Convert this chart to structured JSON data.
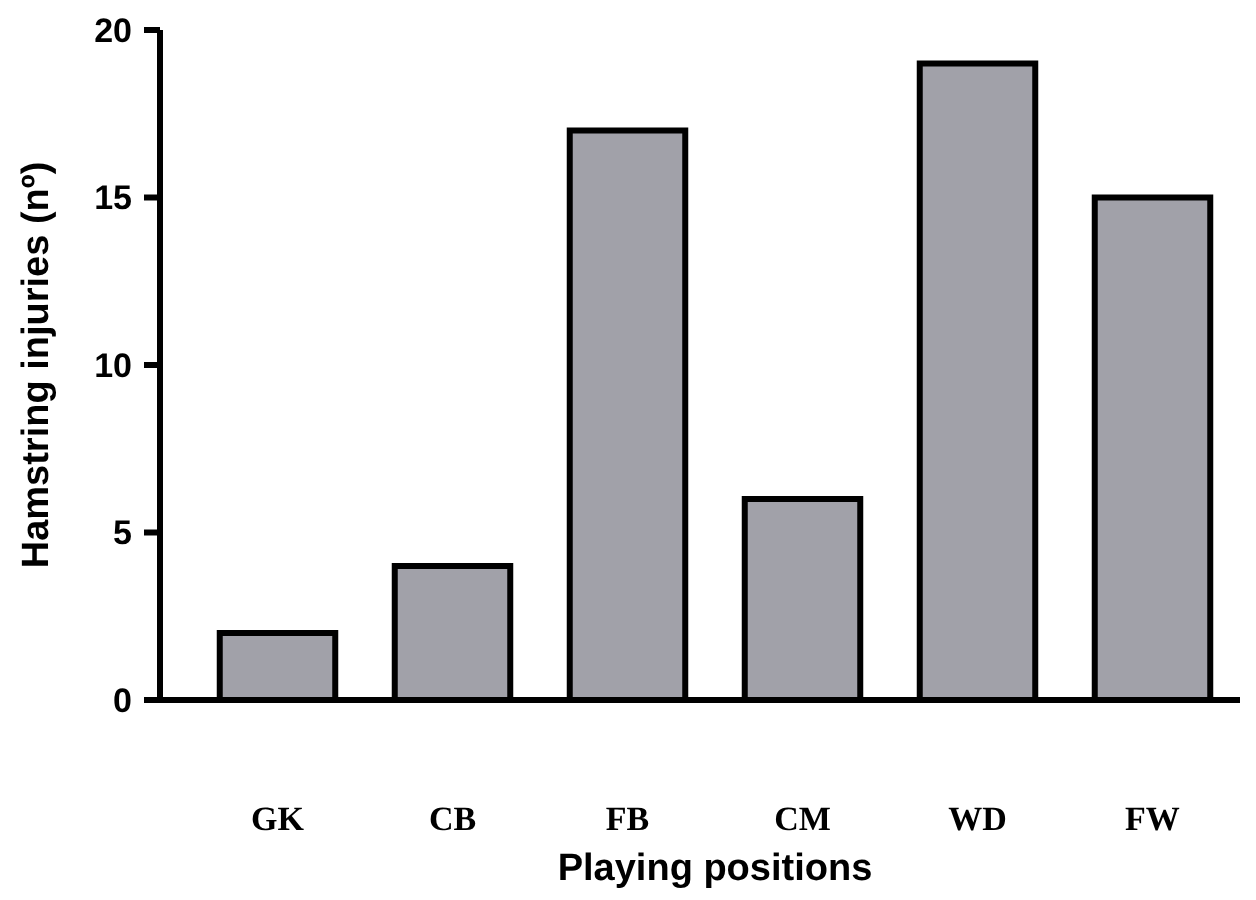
{
  "chart_data": {
    "type": "bar",
    "xlabel": "Playing positions",
    "ylabel": "Hamstring injuries (nº)",
    "categories": [
      "GK",
      "CB",
      "FB",
      "CM",
      "WD",
      "FW"
    ],
    "values": [
      2,
      4,
      17,
      6,
      19,
      15
    ],
    "color": "#a1a1a9",
    "ylim": [
      0,
      20
    ],
    "yticks": [
      0,
      5,
      10,
      15,
      20
    ],
    "grid": false
  }
}
